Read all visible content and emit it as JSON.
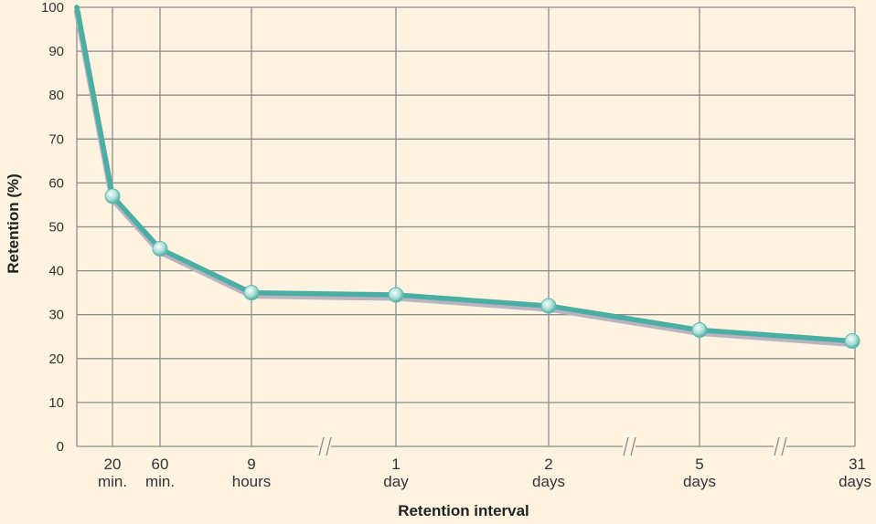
{
  "chart_data": {
    "type": "line",
    "xlabel": "Retention interval",
    "ylabel": "Retention (%)",
    "ylim": [
      0,
      100
    ],
    "y_ticks": [
      0,
      10,
      20,
      30,
      40,
      50,
      60,
      70,
      80,
      90,
      100
    ],
    "x_scale": "broken (non-linear with axis breaks)",
    "grid": true,
    "x_ticks": [
      {
        "line1": "20",
        "line2": "min."
      },
      {
        "line1": "60",
        "line2": "min."
      },
      {
        "line1": "9",
        "line2": "hours"
      },
      {
        "line1": "1",
        "line2": "day"
      },
      {
        "line1": "2",
        "line2": "days"
      },
      {
        "line1": "5",
        "line2": "days"
      },
      {
        "line1": "31",
        "line2": "days"
      }
    ],
    "series": [
      {
        "color": "#4aaea2",
        "points": [
          {
            "x": "0",
            "y": 100,
            "marker": false
          },
          {
            "x": "20 min.",
            "y": 57,
            "marker": true
          },
          {
            "x": "60 min.",
            "y": 45,
            "marker": true
          },
          {
            "x": "9 hours",
            "y": 35,
            "marker": true
          },
          {
            "x": "1 day",
            "y": 34.5,
            "marker": true
          },
          {
            "x": "2 days",
            "y": 32,
            "marker": true
          },
          {
            "x": "5 days",
            "y": 26.5,
            "marker": true
          },
          {
            "x": "31 days",
            "y": 24,
            "marker": true
          }
        ]
      }
    ]
  }
}
